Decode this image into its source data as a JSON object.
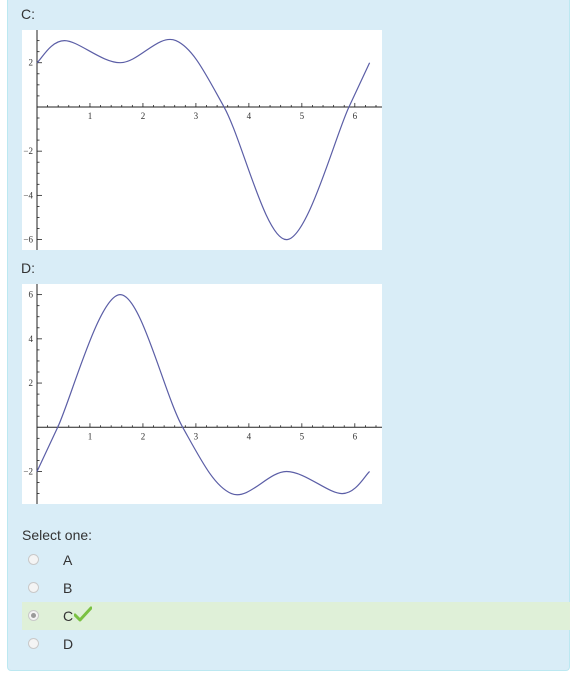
{
  "options": [
    {
      "id": "C",
      "label": "C:"
    },
    {
      "id": "D",
      "label": "D:"
    }
  ],
  "prompt": "Select one:",
  "choices": [
    {
      "letter": "A",
      "selected": false
    },
    {
      "letter": "B",
      "selected": false
    },
    {
      "letter": "C",
      "selected": true,
      "correct": true
    },
    {
      "letter": "D",
      "selected": false
    }
  ],
  "colors": {
    "panel": "#d9edf7",
    "selected_row": "#dff0d8",
    "curve": "#5b5ea6",
    "check": "#7ac142"
  },
  "chart_data": [
    {
      "type": "line",
      "title": "",
      "xlabel": "",
      "ylabel": "",
      "xlim": [
        0,
        6.4
      ],
      "ylim": [
        -6.2,
        3.3
      ],
      "x_ticks": [
        1,
        2,
        3,
        4,
        5,
        6
      ],
      "y_ticks": [
        2,
        -2,
        -4,
        -6
      ],
      "series": [
        {
          "values": [
            [
              0,
              2
            ],
            [
              0.52,
              3
            ],
            [
              1.57,
              2
            ],
            [
              2.62,
              3
            ],
            [
              3.53,
              0
            ],
            [
              4.71,
              -6
            ],
            [
              5.89,
              0
            ],
            [
              6.28,
              2
            ]
          ]
        }
      ]
    },
    {
      "type": "line",
      "title": "",
      "xlabel": "",
      "ylabel": "",
      "xlim": [
        0,
        6.4
      ],
      "ylim": [
        -3.2,
        6.3
      ],
      "x_ticks": [
        1,
        2,
        3,
        4,
        5,
        6
      ],
      "y_ticks": [
        6,
        4,
        2,
        -2
      ],
      "series": [
        {
          "values": [
            [
              0,
              -2
            ],
            [
              0.39,
              0
            ],
            [
              1.57,
              6
            ],
            [
              2.75,
              0
            ],
            [
              3.67,
              -3
            ],
            [
              4.71,
              -2
            ],
            [
              5.76,
              -3
            ],
            [
              6.28,
              -2
            ]
          ]
        }
      ]
    }
  ]
}
